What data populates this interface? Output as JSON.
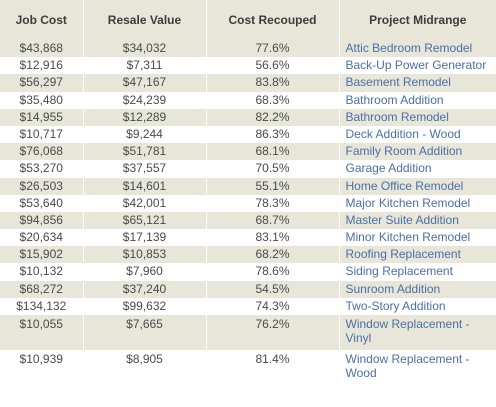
{
  "headers": {
    "job_cost": "Job Cost",
    "resale_value": "Resale Value",
    "cost_recouped": "Cost Recouped",
    "project": "Project Midrange"
  },
  "rows": [
    {
      "job_cost": "$43,868",
      "resale_value": "$34,032",
      "cost_recouped": "77.6%",
      "project": "Attic Bedroom Remodel"
    },
    {
      "job_cost": "$12,916",
      "resale_value": "$7,311",
      "cost_recouped": "56.6%",
      "project": "Back-Up Power Generator"
    },
    {
      "job_cost": "$56,297",
      "resale_value": "$47,167",
      "cost_recouped": "83.8%",
      "project": "Basement Remodel"
    },
    {
      "job_cost": "$35,480",
      "resale_value": "$24,239",
      "cost_recouped": "68.3%",
      "project": "Bathroom Addition"
    },
    {
      "job_cost": "$14,955",
      "resale_value": "$12,289",
      "cost_recouped": "82.2%",
      "project": "Bathroom Remodel"
    },
    {
      "job_cost": "$10,717",
      "resale_value": "$9,244",
      "cost_recouped": "86.3%",
      "project": "Deck Addition - Wood"
    },
    {
      "job_cost": "$76,068",
      "resale_value": "$51,781",
      "cost_recouped": "68.1%",
      "project": "Family Room Addition"
    },
    {
      "job_cost": "$53,270",
      "resale_value": "$37,557",
      "cost_recouped": "70.5%",
      "project": "Garage Addition"
    },
    {
      "job_cost": "$26,503",
      "resale_value": "$14,601",
      "cost_recouped": "55.1%",
      "project": "Home Office Remodel"
    },
    {
      "job_cost": "$53,640",
      "resale_value": "$42,001",
      "cost_recouped": "78.3%",
      "project": "Major Kitchen Remodel"
    },
    {
      "job_cost": "$94,856",
      "resale_value": "$65,121",
      "cost_recouped": "68.7%",
      "project": "Master Suite Addition"
    },
    {
      "job_cost": "$20,634",
      "resale_value": "$17,139",
      "cost_recouped": "83.1%",
      "project": "Minor Kitchen Remodel"
    },
    {
      "job_cost": "$15,902",
      "resale_value": "$10,853",
      "cost_recouped": "68.2%",
      "project": "Roofing Replacement"
    },
    {
      "job_cost": "$10,132",
      "resale_value": "$7,960",
      "cost_recouped": "78.6%",
      "project": "Siding Replacement"
    },
    {
      "job_cost": "$68,272",
      "resale_value": "$37,240",
      "cost_recouped": "54.5%",
      "project": "Sunroom Addition"
    },
    {
      "job_cost": "$134,132",
      "resale_value": "$99,632",
      "cost_recouped": "74.3%",
      "project": "Two-Story Addition"
    },
    {
      "job_cost": "$10,055",
      "resale_value": "$7,665",
      "cost_recouped": "76.2%",
      "project": "Window Replacement - Vinyl"
    },
    {
      "job_cost": "$10,939",
      "resale_value": "$8,905",
      "cost_recouped": "81.4%",
      "project": "Window Replacement - Wood"
    }
  ],
  "colors": {
    "header_bg": "#e7e6d8",
    "stripe_bg": "#e7e6d8",
    "link": "#4a6fa8",
    "text": "#4a4a4a"
  }
}
